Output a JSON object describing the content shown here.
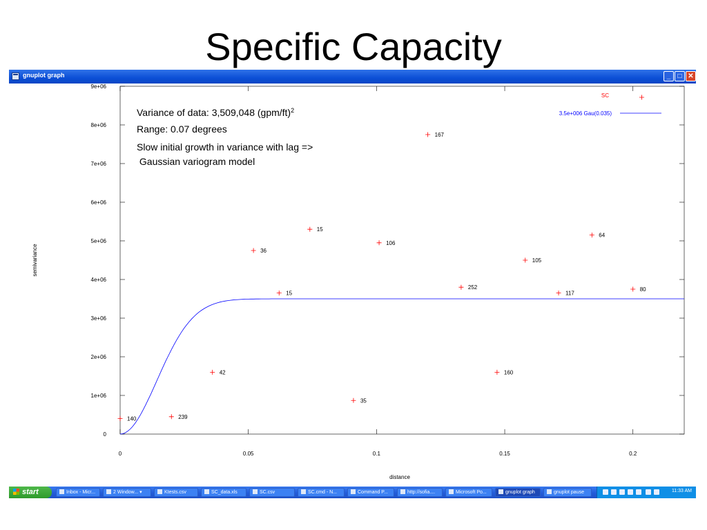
{
  "slide": {
    "title": "Specific Capacity"
  },
  "window": {
    "title": "gnuplot graph",
    "buttons": {
      "minimize": "_",
      "maximize": "□",
      "close": "✕"
    }
  },
  "annotations": {
    "line1": "Variance of data: 3,509,048 (gpm/ft)",
    "line1_sup": "2",
    "line2": "Range: 0.07 degrees",
    "line3": "Slow initial growth in variance with lag =>",
    "line4": " Gaussian variogram model"
  },
  "chart_data": {
    "type": "scatter",
    "xlabel": "distance",
    "ylabel": "semivariance",
    "xlim": [
      0,
      0.22
    ],
    "ylim": [
      0,
      9000000
    ],
    "xticks": [
      0,
      0.05,
      0.1,
      0.15,
      0.2
    ],
    "xtick_labels": [
      "0",
      "0.05",
      "0.1",
      "0.15",
      "0.2"
    ],
    "yticks": [
      0,
      1000000,
      2000000,
      3000000,
      4000000,
      5000000,
      6000000,
      7000000,
      8000000,
      9000000
    ],
    "ytick_labels": [
      "0",
      "1e+06",
      "2e+06",
      "3e+06",
      "4e+06",
      "5e+06",
      "6e+06",
      "7e+06",
      "8e+06",
      "9e+06"
    ],
    "grid": false,
    "legend_position": "top-right",
    "series": [
      {
        "name": "SC",
        "kind": "points",
        "color": "#ff0000",
        "points": [
          {
            "x": 0.0,
            "y": 400000,
            "label": "140"
          },
          {
            "x": 0.02,
            "y": 450000,
            "label": "239"
          },
          {
            "x": 0.036,
            "y": 1600000,
            "label": "42"
          },
          {
            "x": 0.052,
            "y": 4750000,
            "label": "36"
          },
          {
            "x": 0.062,
            "y": 3650000,
            "label": "15"
          },
          {
            "x": 0.074,
            "y": 5300000,
            "label": "15"
          },
          {
            "x": 0.091,
            "y": 870000,
            "label": "35"
          },
          {
            "x": 0.101,
            "y": 4950000,
            "label": "106"
          },
          {
            "x": 0.12,
            "y": 7750000,
            "label": "167"
          },
          {
            "x": 0.133,
            "y": 3800000,
            "label": "252"
          },
          {
            "x": 0.147,
            "y": 1600000,
            "label": "160"
          },
          {
            "x": 0.158,
            "y": 4500000,
            "label": "105"
          },
          {
            "x": 0.171,
            "y": 3650000,
            "label": "117"
          },
          {
            "x": 0.184,
            "y": 5150000,
            "label": "64"
          },
          {
            "x": 0.2,
            "y": 3750000,
            "label": "80"
          }
        ]
      },
      {
        "name": "3.5e+006 Gau(0.035)",
        "kind": "gaussian-model",
        "color": "#0000ff",
        "sill": 3500000,
        "range": 0.035
      }
    ]
  },
  "taskbar": {
    "start_label": "start",
    "items": [
      {
        "label": "Inbox - Micr..."
      },
      {
        "label": "2 Window..."
      },
      {
        "label": "Ktests.csv"
      },
      {
        "label": "SC_data.xls"
      },
      {
        "label": "SC.csv"
      },
      {
        "label": "SC.cmd - N..."
      },
      {
        "label": "Command P..."
      },
      {
        "label": "http://sofia...."
      },
      {
        "label": "Microsoft Po..."
      },
      {
        "label": "gnuplot graph"
      },
      {
        "label": "gnuplot pause"
      }
    ],
    "clock": "11:33 AM"
  }
}
